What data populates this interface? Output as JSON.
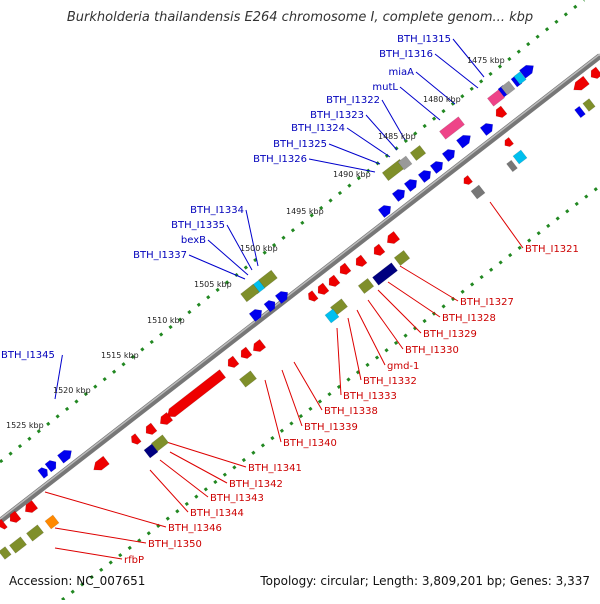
{
  "title": "Burkholderia thailandensis E264 chromosome I, complete genom... kbp",
  "footer": {
    "accession": "Accession: NC_007651",
    "summary": "Topology: circular; Length: 3,809,201 bp; Genes: 3,337"
  },
  "colors": {
    "backbone": "#808080",
    "forward_label": "#0000bb",
    "reverse_label": "#cc0000",
    "forward_gene": "#0000ee",
    "reverse_gene": "#ee0000",
    "cog_olive": "#7f8f2a",
    "cog_cyan": "#00bfee",
    "cog_pink": "#ee4488",
    "cog_grey": "#999999",
    "cog_navy": "#000080",
    "cog_orange": "#ff8800",
    "dotted_track": "#228822"
  },
  "kbp_ticks": [
    "1475 kbp",
    "1480 kbp",
    "1485 kbp",
    "1490 kbp",
    "1495 kbp",
    "1500 kbp",
    "1505 kbp",
    "1510 kbp",
    "1515 kbp",
    "1520 kbp",
    "1525 kbp"
  ],
  "forward_labels": [
    "BTH_I1315",
    "BTH_I1316",
    "miaA",
    "mutL",
    "BTH_I1322",
    "BTH_I1323",
    "BTH_I1324",
    "BTH_I1325",
    "BTH_I1326",
    "BTH_I1334",
    "BTH_I1335",
    "bexB",
    "BTH_I1337",
    "BTH_I1345"
  ],
  "reverse_labels": [
    "BTH_I1321",
    "BTH_I1327",
    "BTH_I1328",
    "BTH_I1329",
    "BTH_I1330",
    "gmd-1",
    "BTH_I1332",
    "BTH_I1333",
    "BTH_I1338",
    "BTH_I1339",
    "BTH_I1340",
    "BTH_I1341",
    "BTH_I1342",
    "BTH_I1343",
    "BTH_I1344",
    "BTH_I1346",
    "BTH_I1350",
    "rfbP"
  ]
}
